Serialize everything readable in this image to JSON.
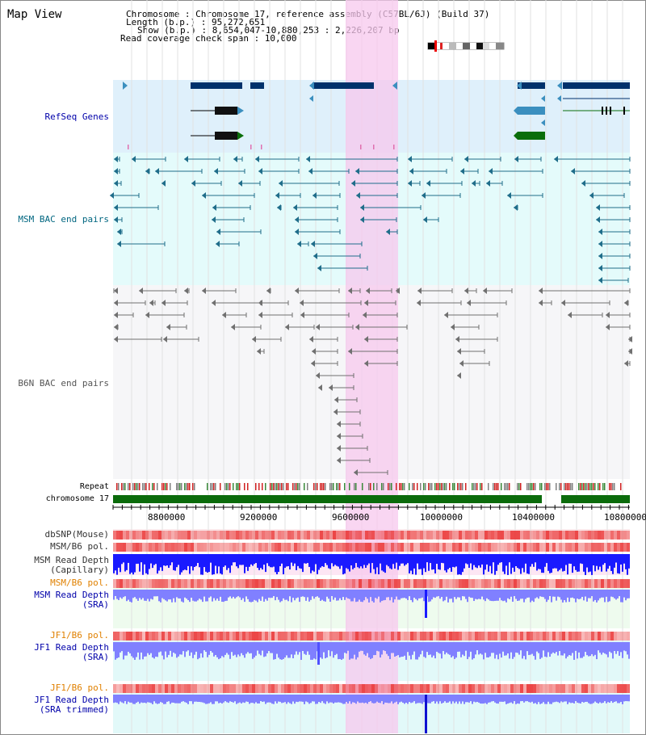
{
  "header": {
    "title": "Map View",
    "chromosome_line": "Chromosome    : Chromosome 17, reference assembly (C57BL/6J) (Build 37)",
    "length_line": "Length (b.p.) : 95,272,651",
    "show_line": "Show (b.p.) : 8,654,047-10,880,253 : 2,226,207 bp",
    "coverage_line": "Read coverage check span : 10,000"
  },
  "tracks": {
    "refseq": "RefSeq Genes",
    "msm_bac": "MSM BAC end pairs",
    "b6n_bac": "B6N BAC end pairs",
    "repeat": "Repeat",
    "chromosome": "chromosome 17",
    "dbsnp": "dbSNP(Mouse)",
    "msm_b6_pol": "MSM/B6 pol.",
    "msm_depth_cap_1": "MSM Read Depth",
    "msm_depth_cap_2": "(Capillary)",
    "msm_b6_pol_2": "MSM/B6 pol.",
    "msm_depth_sra_1": "MSM Read Depth",
    "msm_depth_sra_2": "(SRA)",
    "jf1_b6_pol": "JF1/B6 pol.",
    "jf1_depth_sra_1": "JF1 Read Depth",
    "jf1_depth_sra_2": "(SRA)",
    "jf1_b6_pol_2": "JF1/B6 pol.",
    "jf1_depth_trim_1": "JF1 Read Depth",
    "jf1_depth_trim_2": "(SRA trimmed)"
  },
  "axis": {
    "ticks": [
      "8800000",
      "9200000",
      "9600000",
      "10000000",
      "10400000",
      "10800000"
    ]
  },
  "colors": {
    "refseq_bg": "#dff0fb",
    "msm_bg": "#e4fbfb",
    "b6n_bg": "#f6f6f8",
    "highlight": "#f7c8ee",
    "gene_dark": "#00316b",
    "gene_mid": "#3b8fbf",
    "gene_green": "#0a6e0a",
    "bac_teal": "#1f6d8a",
    "bac_gray": "#707070",
    "chrom_green": "#0b6b0b",
    "depth_blue": "#1a1aff",
    "depth_light": "#8080ff",
    "label_blue": "#0000aa",
    "label_orange": "#e08000",
    "label_teal": "#006680"
  }
}
